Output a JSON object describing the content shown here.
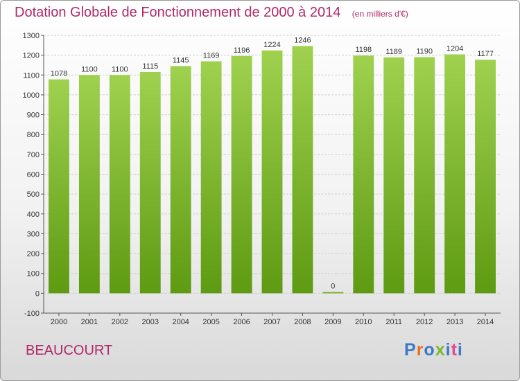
{
  "header": {
    "title": "Dotation Globale de Fonctionnement de 2000 à 2014",
    "unit": "(en milliers d'€)"
  },
  "footer": {
    "commune": "BEAUCOURT",
    "logo": "Proxiti"
  },
  "colors": {
    "title": "#b0286a",
    "bar_light": "#9fd14f",
    "bar_dark": "#5e9a12",
    "logo_letters": [
      "#3a79c9",
      "#e8711a",
      "#3a79c9",
      "#7cb82f",
      "#3a79c9",
      "#e84a8a",
      "#3a79c9"
    ]
  },
  "chart_data": {
    "type": "bar",
    "title": "Dotation Globale de Fonctionnement de 2000 à 2014",
    "subtitle": "(en milliers d'€)",
    "categories": [
      "2000",
      "2001",
      "2002",
      "2003",
      "2004",
      "2005",
      "2006",
      "2007",
      "2008",
      "2009",
      "2010",
      "2011",
      "2012",
      "2013",
      "2014"
    ],
    "values": [
      1078,
      1100,
      1100,
      1115,
      1145,
      1169,
      1196,
      1224,
      1246,
      0,
      1198,
      1189,
      1190,
      1204,
      1177
    ],
    "ylim": [
      -100,
      1300
    ],
    "yticks": [
      -100,
      0,
      100,
      200,
      300,
      400,
      500,
      600,
      700,
      800,
      900,
      1000,
      1100,
      1200,
      1300
    ],
    "grid": true,
    "xlabel": "",
    "ylabel": ""
  }
}
